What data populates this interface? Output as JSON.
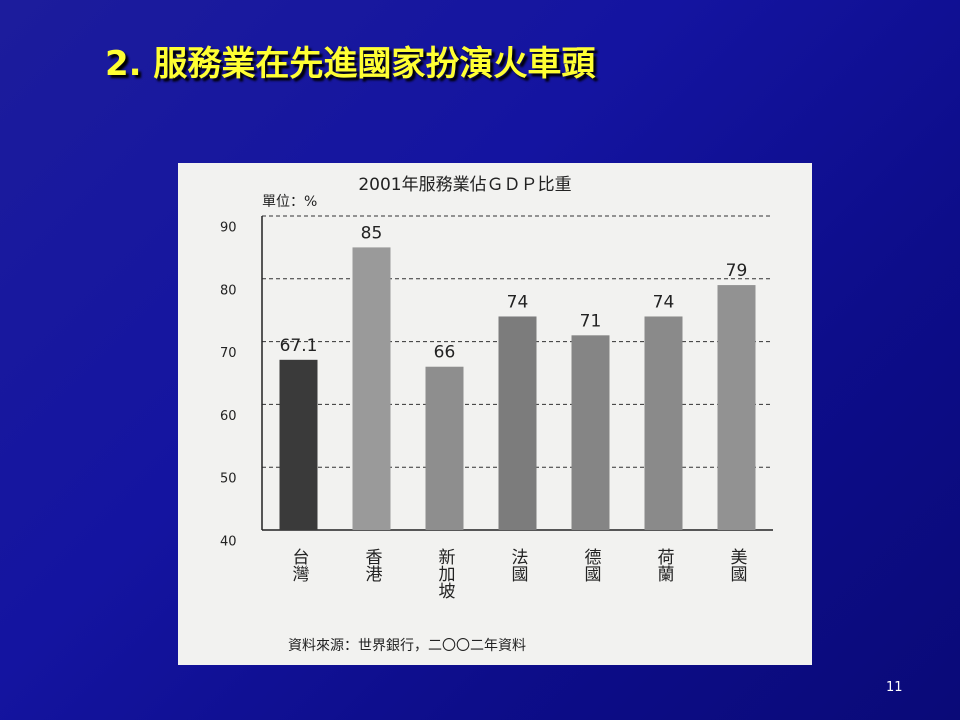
{
  "slide_title": "2. 服務業在先進國家扮演火車頭",
  "page_number": "11",
  "chart_data": {
    "type": "bar",
    "title": "2001年服務業佔ＧＤＰ比重",
    "unit_label": "單位：%",
    "source": "資料來源：世界銀行，二〇〇二年資料",
    "categories": [
      "台灣",
      "香港",
      "新加坡",
      "法國",
      "德國",
      "荷蘭",
      "美國"
    ],
    "values": [
      67.1,
      85,
      66,
      74,
      71,
      74,
      79
    ],
    "colors": [
      "#3a3a3a",
      "#9a9a9a",
      "#8e8e8e",
      "#7c7c7c",
      "#858585",
      "#8a8a8a",
      "#929292"
    ],
    "ylim": [
      40,
      90
    ],
    "yticks": [
      40,
      50,
      60,
      70,
      80,
      90
    ],
    "grid": true
  }
}
